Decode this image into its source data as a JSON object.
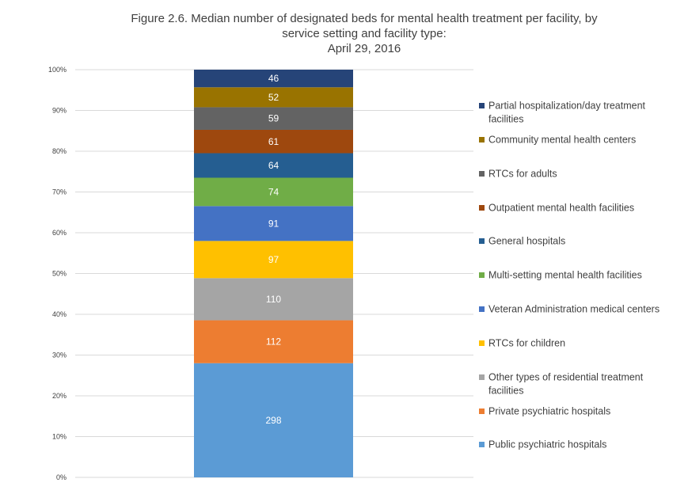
{
  "chart_data": {
    "type": "bar",
    "stacked": true,
    "normalized_percent": true,
    "title_lines": [
      "Figure 2.6. Median number of designated beds for mental health treatment per facility, by",
      "service setting and facility type:",
      "April 29, 2016"
    ],
    "ylim": [
      0,
      100
    ],
    "yticks": [
      "0%",
      "10%",
      "20%",
      "30%",
      "40%",
      "50%",
      "60%",
      "70%",
      "80%",
      "90%",
      "100%"
    ],
    "grid": true,
    "legend_position": "right",
    "series": [
      {
        "name": "Public psychiatric hospitals",
        "value": 298,
        "color": "#5B9BD5"
      },
      {
        "name": "Private psychiatric hospitals",
        "value": 112,
        "color": "#ED7D31"
      },
      {
        "name": "Other types of residential treatment facilities",
        "value": 110,
        "color": "#A5A5A5"
      },
      {
        "name": "RTCs for children",
        "value": 97,
        "color": "#FFC000"
      },
      {
        "name": "Veteran Administration medical centers",
        "value": 91,
        "color": "#4472C4"
      },
      {
        "name": "Multi-setting mental health facilities",
        "value": 74,
        "color": "#70AD47"
      },
      {
        "name": "General hospitals",
        "value": 64,
        "color": "#255E91"
      },
      {
        "name": "Outpatient mental health facilities",
        "value": 61,
        "color": "#9E480E"
      },
      {
        "name": "RTCs for adults",
        "value": 59,
        "color": "#636363"
      },
      {
        "name": "Community mental health centers",
        "value": 52,
        "color": "#997300"
      },
      {
        "name": "Partial hospitalization/day treatment facilities",
        "value": 46,
        "color": "#264478"
      }
    ]
  }
}
